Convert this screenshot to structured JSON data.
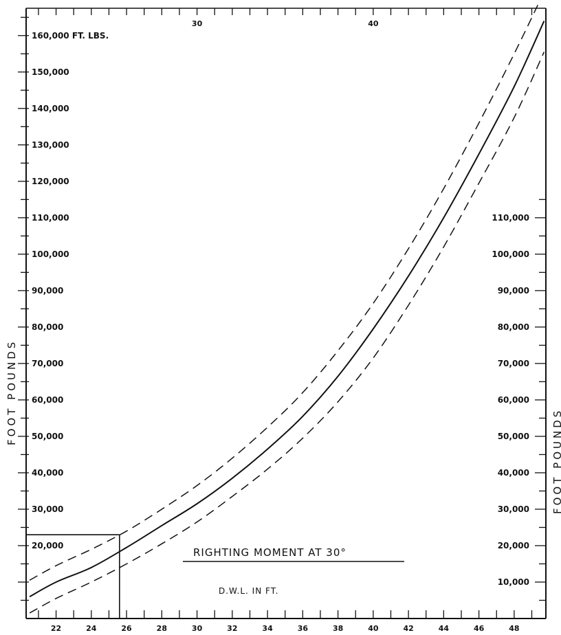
{
  "chart_data": {
    "type": "line",
    "title": "RIGHTING MOMENT AT 30°",
    "xlabel": "D.W.L. IN FT.",
    "ylabel": "FOOT POUNDS",
    "xlim": [
      20.3,
      49.8
    ],
    "ylim": [
      0,
      167500
    ],
    "x_ticks": [
      "22",
      "24",
      "26",
      "28",
      "30",
      "32",
      "34",
      "36",
      "38",
      "40",
      "42",
      "44",
      "46",
      "48"
    ],
    "x_ticks_top": [
      "30",
      "40"
    ],
    "y_ticks_left": [
      "160,000 FT. LBS.",
      "150,000",
      "140,000",
      "130,000",
      "120,000",
      "110,000",
      "100,000",
      "90,000",
      "80,000",
      "70,000",
      "60,000",
      "50,000",
      "40,000",
      "30,000",
      "20,000"
    ],
    "y_ticks_right": [
      "110,000",
      "100,000",
      "90,000",
      "80,000",
      "70,000",
      "60,000",
      "50,000",
      "40,000",
      "30,000",
      "20,000",
      "10,000"
    ],
    "series": [
      {
        "style": "solid",
        "x": [
          20.5,
          22,
          24,
          26,
          28,
          30,
          32,
          34,
          36,
          38,
          40,
          42,
          44,
          46,
          48,
          49.7
        ],
        "y": [
          6000,
          10000,
          14000,
          19500,
          25500,
          31500,
          38500,
          46500,
          55500,
          66500,
          79500,
          94000,
          110000,
          127500,
          146000,
          164000
        ]
      },
      {
        "style": "dashed",
        "x": [
          20.5,
          22,
          24,
          26,
          28,
          30,
          32,
          34,
          36,
          38,
          40,
          42,
          44,
          46,
          48,
          49.7
        ],
        "y": [
          10500,
          14500,
          19000,
          24000,
          30000,
          36500,
          44000,
          52500,
          62000,
          73500,
          86500,
          101500,
          118000,
          136000,
          155000,
          172000
        ]
      },
      {
        "style": "dashed",
        "x": [
          20.5,
          22,
          24,
          26,
          28,
          30,
          32,
          34,
          36,
          38,
          40,
          42,
          44,
          46,
          48,
          49.7
        ],
        "y": [
          1500,
          5500,
          10000,
          15000,
          20500,
          26500,
          33500,
          41000,
          49500,
          59500,
          71500,
          86000,
          102000,
          119500,
          137500,
          155500
        ]
      }
    ],
    "reference_lines": [
      {
        "orientation": "horizontal",
        "y": 23000,
        "x_from": 20.3,
        "x_to": 25.6
      },
      {
        "orientation": "vertical",
        "x": 25.6,
        "y_from": 0,
        "y_to": 23000
      }
    ],
    "grid": false
  }
}
